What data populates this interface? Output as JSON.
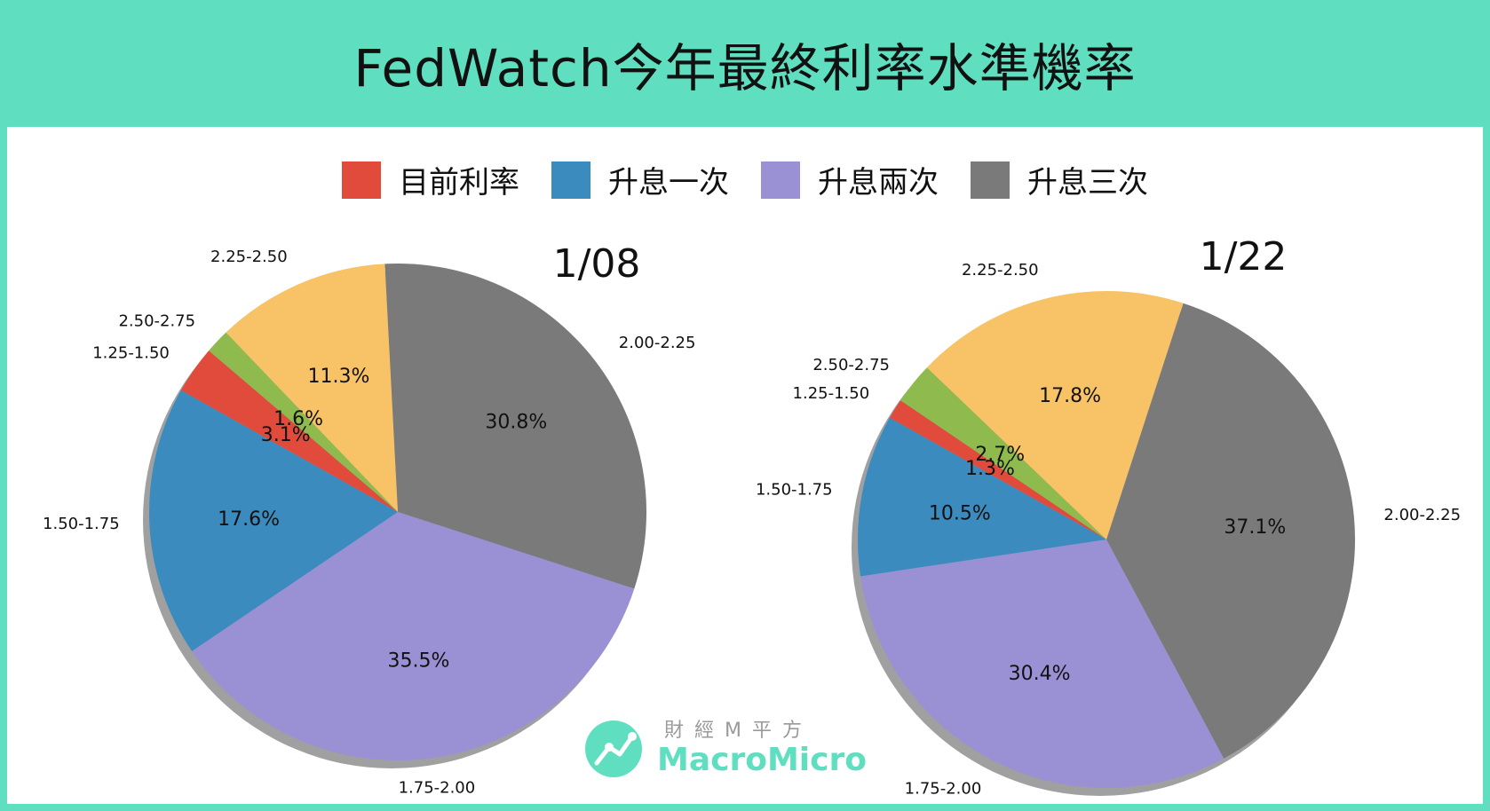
{
  "title": "FedWatch今年最終利率水準機率",
  "legend": [
    {
      "label": "目前利率",
      "color": "#e04b3c"
    },
    {
      "label": "升息一次",
      "color": "#3b8bbf"
    },
    {
      "label": "升息兩次",
      "color": "#9a90d4"
    },
    {
      "label": "升息三次",
      "color": "#7a7a7a"
    }
  ],
  "chart_data": [
    {
      "type": "pie",
      "title": "1/08",
      "slices": [
        {
          "category": "2.00-2.25",
          "value": 30.8,
          "label": "30.8%",
          "color": "#7a7a7a"
        },
        {
          "category": "1.75-2.00",
          "value": 35.5,
          "label": "35.5%",
          "color": "#9a90d4"
        },
        {
          "category": "1.50-1.75",
          "value": 17.6,
          "label": "17.6%",
          "color": "#3b8bbf"
        },
        {
          "category": "1.25-1.50",
          "value": 3.1,
          "label": "3.1%",
          "color": "#e04b3c"
        },
        {
          "category": "2.50-2.75",
          "value": 1.6,
          "label": "1.6%",
          "color": "#8fbb4e"
        },
        {
          "category": "2.25-2.50",
          "value": 11.3,
          "label": "11.3%",
          "color": "#f8c266"
        }
      ]
    },
    {
      "type": "pie",
      "title": "1/22",
      "slices": [
        {
          "category": "2.00-2.25",
          "value": 37.1,
          "label": "37.1%",
          "color": "#7a7a7a"
        },
        {
          "category": "1.75-2.00",
          "value": 30.4,
          "label": "30.4%",
          "color": "#9a90d4"
        },
        {
          "category": "1.50-1.75",
          "value": 10.5,
          "label": "10.5%",
          "color": "#3b8bbf"
        },
        {
          "category": "1.25-1.50",
          "value": 1.3,
          "label": "1.3%",
          "color": "#e04b3c"
        },
        {
          "category": "2.50-2.75",
          "value": 2.7,
          "label": "2.7%",
          "color": "#8fbb4e"
        },
        {
          "category": "2.25-2.50",
          "value": 17.8,
          "label": "17.8%",
          "color": "#f8c266"
        }
      ]
    }
  ],
  "watermark": {
    "chinese": "財經M平方",
    "brand": "MacroMicro",
    "brand_color": "#5fdfc0"
  }
}
